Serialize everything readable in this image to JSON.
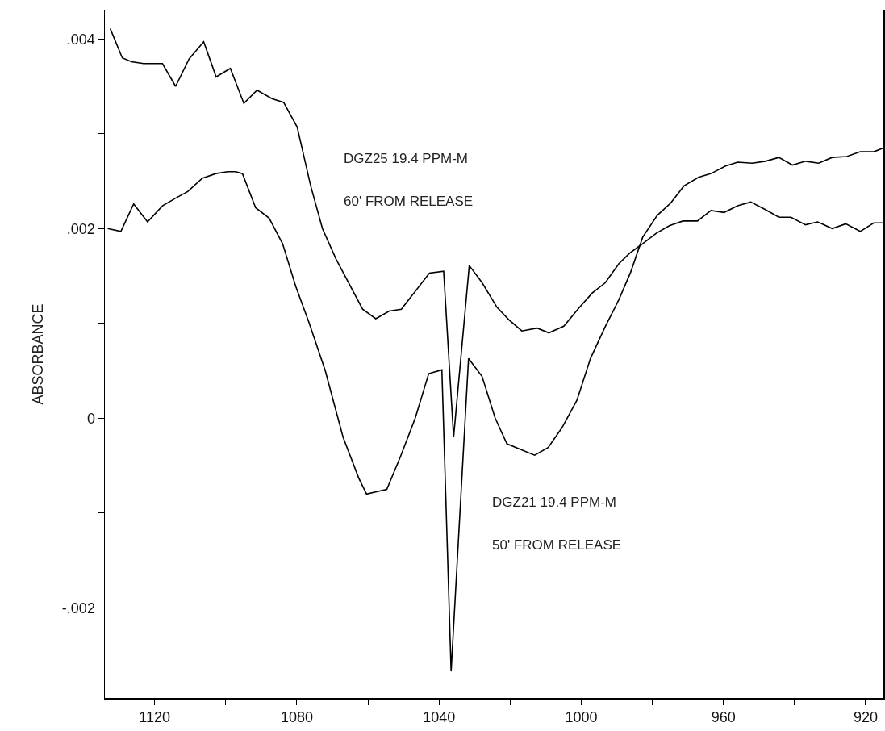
{
  "chart_data": {
    "type": "line",
    "ylabel": "ABSORBANCE",
    "annotations": [
      "DGZ25 19.4 PPM-M",
      "60' FROM RELEASE",
      "DGZ21 19.4 PPM-M",
      "50' FROM RELEASE"
    ],
    "xlim": [
      1134,
      915
    ],
    "ylim": [
      -0.00295,
      0.0043
    ],
    "xticks": [
      1120,
      {
        "value": 1100,
        "label": null
      },
      1080,
      {
        "value": 1060,
        "label": null
      },
      1040,
      {
        "value": 1020,
        "label": null
      },
      1000,
      {
        "value": 980,
        "label": null
      },
      960,
      {
        "value": 940,
        "label": null
      },
      920
    ],
    "yticks": [
      {
        "value": -0.002,
        "label": "-.002"
      },
      {
        "value": -0.001,
        "label": null
      },
      0,
      {
        "value": 0.001,
        "label": null
      },
      {
        "value": 0.002,
        "label": ".002"
      },
      {
        "value": 0.003,
        "label": null
      },
      {
        "value": 0.004,
        "label": ".004"
      }
    ],
    "grid": false,
    "series": [
      {
        "color": "#000000",
        "x": [
          1132.5,
          1129.1,
          1126.5,
          1123.1,
          1117.8,
          1114.1,
          1110.3,
          1106.2,
          1102.7,
          1098.7,
          1094.9,
          1091.2,
          1087.0,
          1083.7,
          1079.9,
          1076.1,
          1072.8,
          1069.0,
          1061.5,
          1057.8,
          1054.0,
          1050.6,
          1042.7,
          1038.7,
          1035.9,
          1031.5,
          1027.9,
          1023.7,
          1020.4,
          1016.7,
          1012.4,
          1009.1,
          1004.9,
          1000.7,
          996.9,
          993.2,
          989.4,
          986.4,
          983.1,
          978.9,
          975.2,
          971.4,
          967.3,
          963.5,
          959.8,
          956.0,
          952.3,
          948.2,
          944.4,
          941.0,
          936.9,
          933.5,
          929.4,
          925.6,
          921.5,
          917.7,
          915.0
        ],
        "values": [
          0.00411,
          0.0038,
          0.00376,
          0.00374,
          0.00374,
          0.0035,
          0.00379,
          0.00397,
          0.0036,
          0.00369,
          0.00332,
          0.00346,
          0.00337,
          0.00333,
          0.00307,
          0.00245,
          0.002,
          0.00168,
          0.00115,
          0.00105,
          0.00113,
          0.00115,
          0.00153,
          0.00155,
          -0.0002,
          0.00161,
          0.00143,
          0.00117,
          0.00104,
          0.00092,
          0.00095,
          0.0009,
          0.00097,
          0.00116,
          0.00132,
          0.00143,
          0.00163,
          0.00174,
          0.00183,
          0.00195,
          0.00203,
          0.00208,
          0.00208,
          0.00219,
          0.00217,
          0.00224,
          0.00228,
          0.0022,
          0.00212,
          0.00212,
          0.00204,
          0.00207,
          0.002,
          0.00205,
          0.00197,
          0.00206,
          0.00206
        ]
      },
      {
        "color": "#000000",
        "x": [
          1133.2,
          1129.5,
          1125.9,
          1122.0,
          1117.8,
          1114.1,
          1110.7,
          1106.6,
          1102.8,
          1099.4,
          1097.2,
          1095.3,
          1091.6,
          1087.8,
          1084.0,
          1080.3,
          1076.5,
          1072,
          1067,
          1062.6,
          1060.4,
          1054.7,
          1050.9,
          1046.7,
          1042.9,
          1039.2,
          1036.6,
          1031.7,
          1027.9,
          1024.2,
          1020.9,
          1013.1,
          1009.3,
          1005.4,
          1001.2,
          997.4,
          993.2,
          989.4,
          986.1,
          982.7,
          978.6,
          974.8,
          971.1,
          967.0,
          963.5,
          959.4,
          956.0,
          951.9,
          948.2,
          944.4,
          940.6,
          936.9,
          933.2,
          929.4,
          925.3,
          921.5,
          917.7,
          915.0
        ],
        "values": [
          0.002,
          0.00197,
          0.00226,
          0.00207,
          0.00224,
          0.00232,
          0.00239,
          0.00253,
          0.00258,
          0.0026,
          0.0026,
          0.00258,
          0.00222,
          0.00211,
          0.00184,
          0.00139,
          0.001,
          0.0005,
          -0.0002,
          -0.00063,
          -0.0008,
          -0.00075,
          -0.00041,
          0,
          0.00047,
          0.00051,
          -0.00267,
          0.00063,
          0.00044,
          0,
          -0.00027,
          -0.00039,
          -0.00031,
          -0.0001,
          0.00019,
          0.00063,
          0.00097,
          0.00125,
          0.00154,
          0.00191,
          0.00214,
          0.00227,
          0.00245,
          0.00254,
          0.00258,
          0.00266,
          0.0027,
          0.00269,
          0.00271,
          0.00275,
          0.00267,
          0.00271,
          0.00269,
          0.00275,
          0.00276,
          0.00281,
          0.00281,
          0.00285
        ]
      }
    ]
  }
}
